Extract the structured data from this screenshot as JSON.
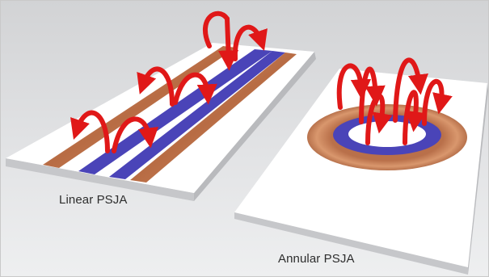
{
  "labels": {
    "linear": "Linear PSJA",
    "annular": "Annular PSJA"
  },
  "colors": {
    "background_top": "#d2d3d5",
    "background_bottom": "#eeeff0",
    "plate_top": "#ffffff",
    "plate_side": "#cfd0d2",
    "copper_electrode": "#c27a52",
    "dielectric_electrode": "#4a44b8",
    "flow_arrow": "#e01818"
  },
  "icons": {
    "flow": "curved-flow-arrow"
  }
}
